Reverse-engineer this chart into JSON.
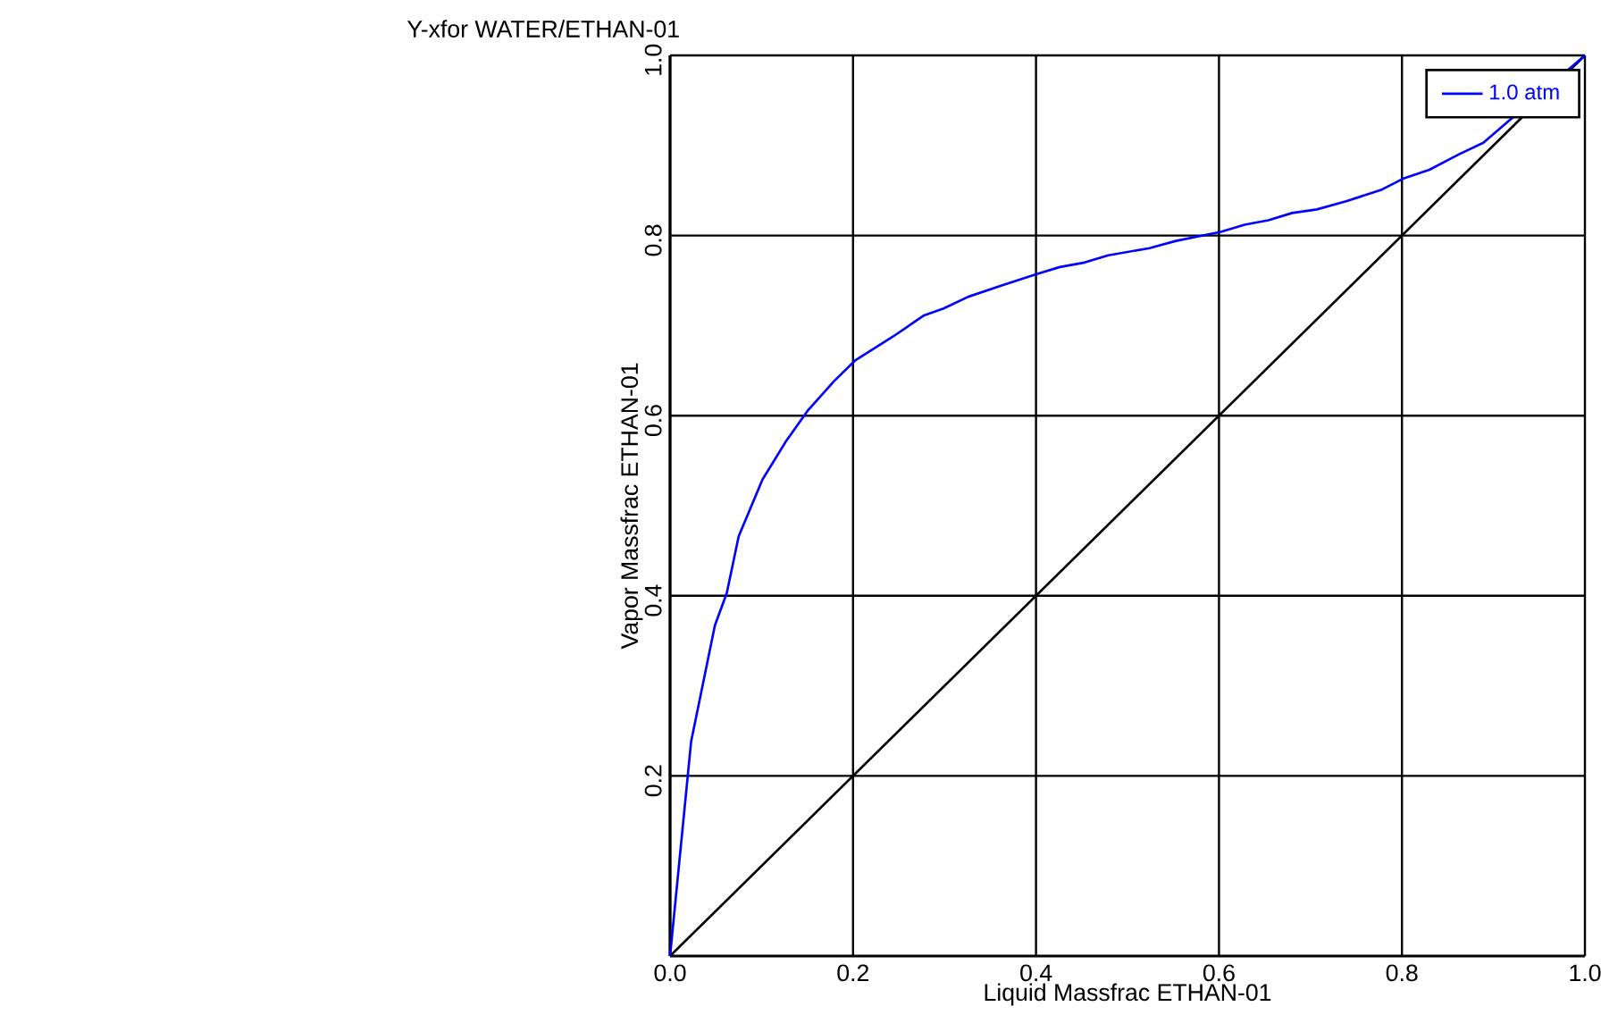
{
  "chart_data": {
    "type": "line",
    "title": "Y-xfor WATER/ETHAN-01",
    "xlabel": "Liquid Massfrac ETHAN-01",
    "ylabel": "Vapor Massfrac ETHAN-01",
    "series": [
      {
        "color": "#000000",
        "x": [
          0,
          1
        ],
        "values": [
          0,
          1
        ]
      },
      {
        "name": "1.0 atm",
        "color": "#0000ff",
        "x": [
          0,
          0.023,
          0.049,
          0.062,
          0.075,
          0.101,
          0.127,
          0.15,
          0.179,
          0.202,
          0.244,
          0.277,
          0.299,
          0.326,
          0.361,
          0.4,
          0.426,
          0.453,
          0.479,
          0.524,
          0.553,
          0.602,
          0.628,
          0.654,
          0.68,
          0.707,
          0.739,
          0.778,
          0.801,
          0.83,
          0.862,
          0.889,
          1
        ],
        "values": [
          0,
          0.238,
          0.367,
          0.403,
          0.466,
          0.529,
          0.572,
          0.605,
          0.638,
          0.661,
          0.688,
          0.711,
          0.719,
          0.732,
          0.744,
          0.757,
          0.765,
          0.77,
          0.778,
          0.786,
          0.794,
          0.804,
          0.812,
          0.817,
          0.825,
          0.829,
          0.838,
          0.851,
          0.863,
          0.873,
          0.89,
          0.903,
          1
        ]
      }
    ],
    "xlim": [
      0,
      1
    ],
    "ylim": [
      0,
      1
    ],
    "xticks": [
      {
        "value": 0,
        "label": "0.0"
      },
      0.2,
      0.4,
      0.6,
      0.8,
      {
        "value": 1,
        "label": "1.0"
      }
    ],
    "yticks": [
      0.2,
      0.4,
      0.6,
      0.8,
      {
        "value": 1,
        "label": "1.0"
      }
    ],
    "grid": true,
    "legend": "top right"
  }
}
